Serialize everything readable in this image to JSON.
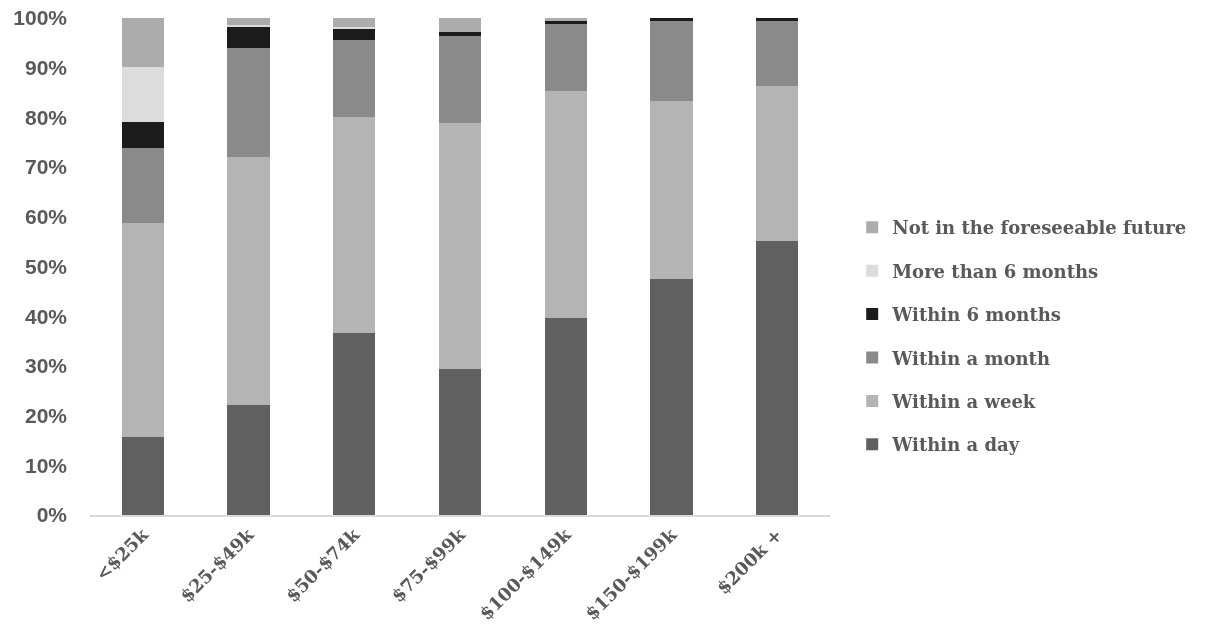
{
  "chart_data": {
    "type": "bar",
    "stacked": true,
    "categories": [
      "<$25k",
      "$25-$49k",
      "$50-$74k",
      "$75-$99k",
      "$100-$149k",
      "$150-$199k",
      "$200k +"
    ],
    "series": [
      {
        "name": "Within a day",
        "color": "#606060",
        "values": [
          15.6,
          22.1,
          36.7,
          29.4,
          39.7,
          47.5,
          55.1
        ]
      },
      {
        "name": "Within a week",
        "color": "#b4b4b4",
        "values": [
          43.2,
          49.9,
          43.3,
          49.5,
          45.6,
          35.8,
          31.2
        ]
      },
      {
        "name": "Within a month",
        "color": "#8a8a8a",
        "values": [
          15.0,
          22.0,
          15.6,
          17.4,
          13.4,
          16.0,
          13.1
        ]
      },
      {
        "name": "Within 6 months",
        "color": "#1c1c1c",
        "values": [
          5.3,
          4.3,
          2.2,
          0.9,
          0.6,
          0.7,
          0.6
        ]
      },
      {
        "name": "More than 6 months",
        "color": "#dcdcdc",
        "values": [
          11.0,
          0.2,
          0.4,
          null,
          null,
          null,
          null
        ]
      },
      {
        "name": "Not in the foreseeable future",
        "color": "#acacac",
        "values": [
          9.9,
          1.5,
          1.8,
          2.8,
          0.7,
          null,
          null
        ]
      }
    ],
    "ylim": [
      0,
      100
    ],
    "yticks": [
      {
        "value": 0,
        "label": "0%"
      },
      {
        "value": 10,
        "label": "10%"
      },
      {
        "value": 20,
        "label": "20%"
      },
      {
        "value": 30,
        "label": "30%"
      },
      {
        "value": 40,
        "label": "40%"
      },
      {
        "value": 50,
        "label": "50%"
      },
      {
        "value": 60,
        "label": "60%"
      },
      {
        "value": 70,
        "label": "70%"
      },
      {
        "value": 80,
        "label": "80%"
      },
      {
        "value": 90,
        "label": "90%"
      },
      {
        "value": 100,
        "label": "100%"
      }
    ],
    "grid": false,
    "legend": "right"
  }
}
